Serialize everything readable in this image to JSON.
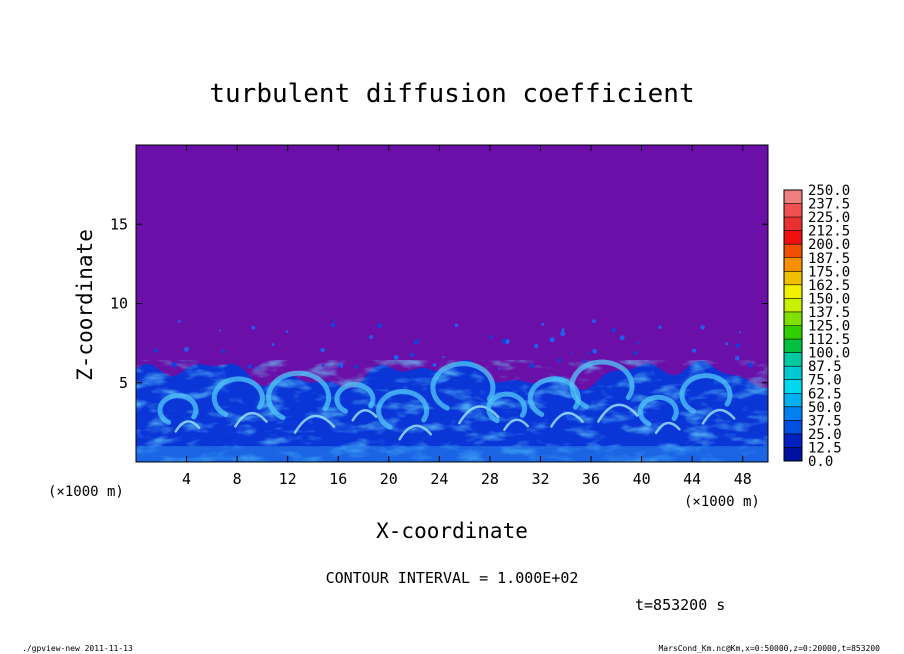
{
  "chart_data": {
    "type": "heatmap",
    "title": "turbulent diffusion coefficient",
    "xlabel": "X-coordinate",
    "ylabel": "Z-coordinate",
    "x_unit_left": "(×1000 m)",
    "x_unit_right": "(×1000 m)",
    "xlim": [
      0,
      50
    ],
    "ylim": [
      0,
      20
    ],
    "x_ticks": [
      "4",
      "8",
      "12",
      "16",
      "20",
      "24",
      "28",
      "32",
      "36",
      "40",
      "44",
      "48"
    ],
    "y_ticks": [
      "5",
      "10",
      "15"
    ],
    "contour_interval_text": "CONTOUR INTERVAL = 1.000E+02",
    "time_text": "t=853200 s",
    "colorbar": {
      "labels": [
        "250.0",
        "237.5",
        "225.0",
        "212.5",
        "200.0",
        "187.5",
        "175.0",
        "162.5",
        "150.0",
        "137.5",
        "125.0",
        "112.5",
        "100.0",
        "87.5",
        "75.0",
        "62.5",
        "50.0",
        "37.5",
        "25.0",
        "12.5",
        "0.0"
      ],
      "colors": [
        "#f08080",
        "#f05050",
        "#e83030",
        "#f01010",
        "#f05000",
        "#f89000",
        "#f0c000",
        "#f0f000",
        "#c8f000",
        "#80e000",
        "#30d000",
        "#00c040",
        "#00c8a0",
        "#00c8d0",
        "#00d8f0",
        "#00b0f0",
        "#0080f0",
        "#0050e0",
        "#0020c0",
        "#0010a0",
        "#6a10a8"
      ]
    },
    "background_color": "#6a10a8",
    "layer_top_approx": 5.5,
    "footer_left": "./gpview-new  2011-11-13",
    "footer_right": "MarsCond_Km.nc@Km,x=0:50000,z=0:20000,t=853200"
  }
}
